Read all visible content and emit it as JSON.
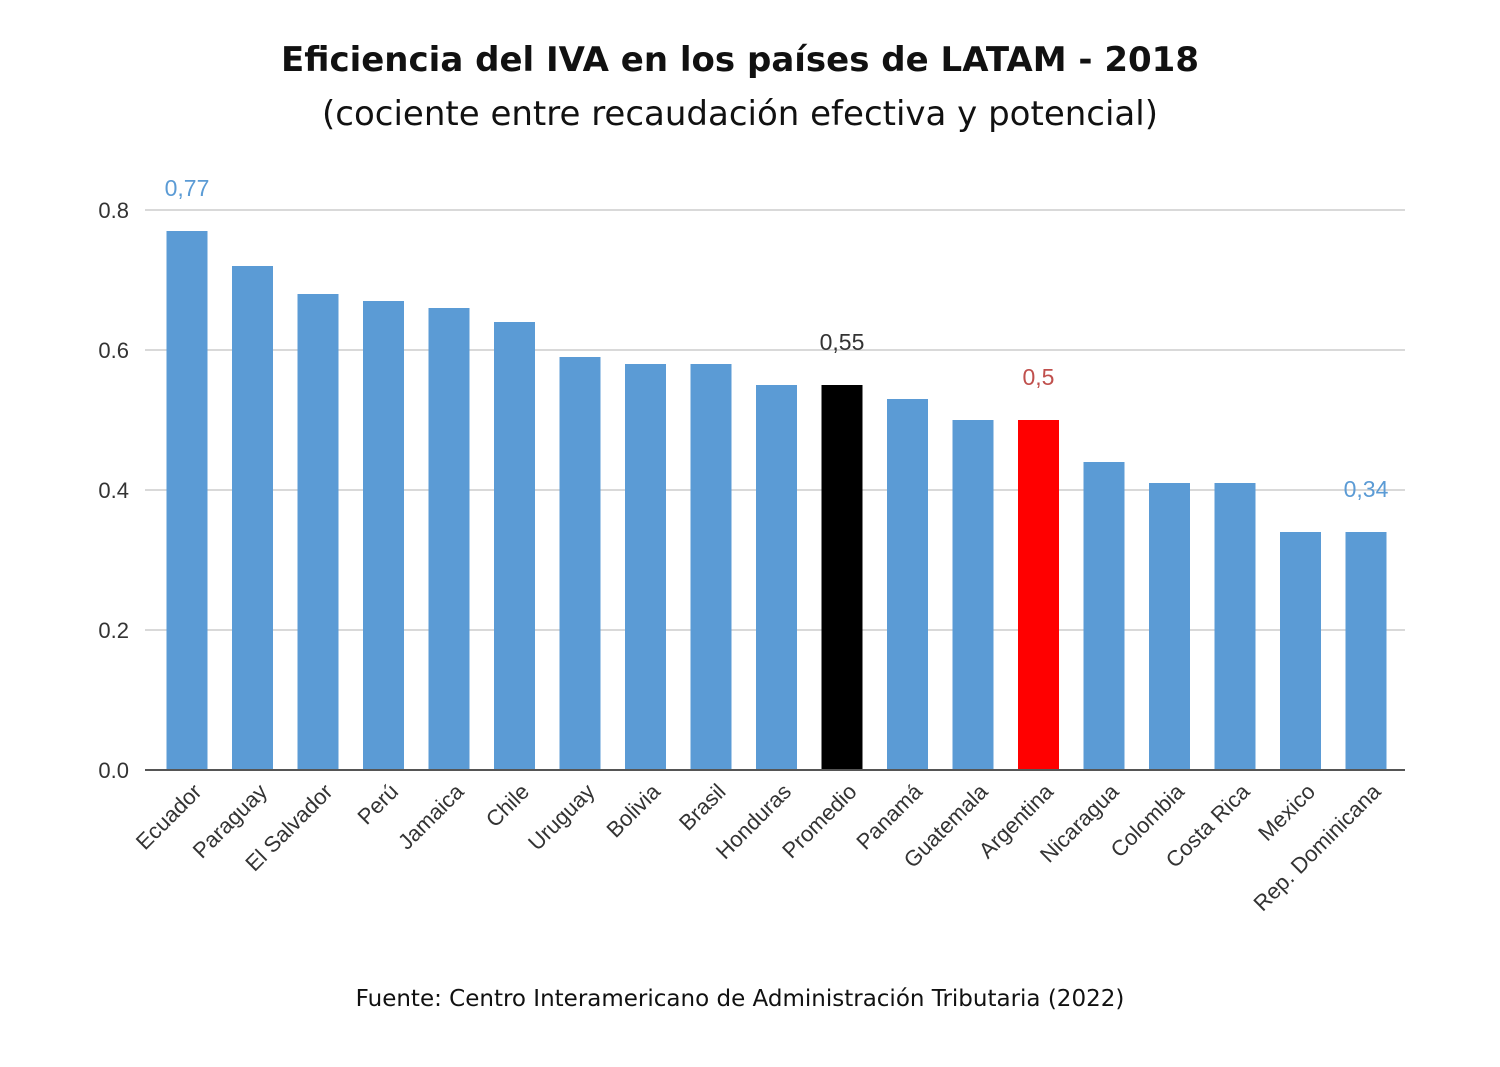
{
  "chart_data": {
    "type": "bar",
    "title": "Eficiencia del IVA en los países de LATAM - 2018",
    "subtitle": "(cociente entre recaudación efectiva y potencial)",
    "source": "Fuente: Centro Interamericano de Administración Tributaria (2022)",
    "xlabel": "",
    "ylabel": "",
    "ylim": [
      0,
      0.8
    ],
    "yticks": [
      0,
      0.2,
      0.4,
      0.6,
      0.8
    ],
    "ytick_labels": [
      "0.0",
      "0.2",
      "0.4",
      "0.6",
      "0.8"
    ],
    "grid": true,
    "categories": [
      "Ecuador",
      "Paraguay",
      "El Salvador",
      "Perú",
      "Jamaica",
      "Chile",
      "Uruguay",
      "Bolivia",
      "Brasil",
      "Honduras",
      "Promedio",
      "Panamá",
      "Guatemala",
      "Argentina",
      "Nicaragua",
      "Colombia",
      "Costa Rica",
      "Mexico",
      "Rep. Dominicana"
    ],
    "values": [
      0.77,
      0.72,
      0.68,
      0.67,
      0.66,
      0.64,
      0.59,
      0.58,
      0.58,
      0.55,
      0.55,
      0.53,
      0.5,
      0.5,
      0.44,
      0.41,
      0.41,
      0.34,
      0.34
    ],
    "bar_colors": [
      "#5b9bd5",
      "#5b9bd5",
      "#5b9bd5",
      "#5b9bd5",
      "#5b9bd5",
      "#5b9bd5",
      "#5b9bd5",
      "#5b9bd5",
      "#5b9bd5",
      "#5b9bd5",
      "#000000",
      "#5b9bd5",
      "#5b9bd5",
      "#ff0000",
      "#5b9bd5",
      "#5b9bd5",
      "#5b9bd5",
      "#5b9bd5",
      "#5b9bd5"
    ],
    "data_labels": [
      {
        "index": 0,
        "text": "0,77",
        "color": "#5b9bd5"
      },
      {
        "index": 10,
        "text": "0,55",
        "color": "#333333"
      },
      {
        "index": 13,
        "text": "0,5",
        "color": "#c0504d"
      },
      {
        "index": 18,
        "text": "0,34",
        "color": "#5b9bd5"
      }
    ]
  }
}
